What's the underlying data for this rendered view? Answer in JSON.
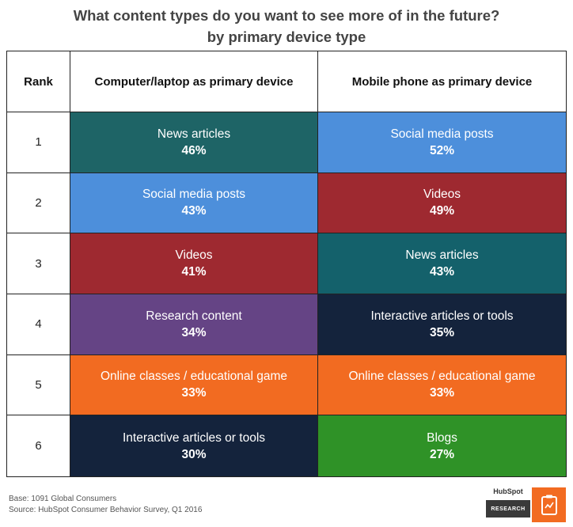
{
  "title_line1": "What content types do you want to see more of in the future?",
  "title_line2": "by primary device type",
  "headers": {
    "rank": "Rank",
    "computer": "Computer/laptop as primary device",
    "mobile": "Mobile phone as primary device"
  },
  "colors": {
    "teal_dark": "#1e6466",
    "teal": "#14616b",
    "blue": "#4d8fdb",
    "red": "#9e2930",
    "purple": "#654485",
    "orange": "#f26b21",
    "navy": "#14233c",
    "green": "#2f9227"
  },
  "rows": [
    {
      "rank": "1",
      "computer": {
        "label": "News articles",
        "pct": "46%",
        "color": "#1e6466"
      },
      "mobile": {
        "label": "Social media posts",
        "pct": "52%",
        "color": "#4d8fdb"
      }
    },
    {
      "rank": "2",
      "computer": {
        "label": "Social media posts",
        "pct": "43%",
        "color": "#4d8fdb"
      },
      "mobile": {
        "label": "Videos",
        "pct": "49%",
        "color": "#9e2930"
      }
    },
    {
      "rank": "3",
      "computer": {
        "label": "Videos",
        "pct": "41%",
        "color": "#9e2930"
      },
      "mobile": {
        "label": "News articles",
        "pct": "43%",
        "color": "#14616b"
      }
    },
    {
      "rank": "4",
      "computer": {
        "label": "Research content",
        "pct": "34%",
        "color": "#654485"
      },
      "mobile": {
        "label": "Interactive articles or tools",
        "pct": "35%",
        "color": "#14233c"
      }
    },
    {
      "rank": "5",
      "computer": {
        "label": "Online classes / educational game",
        "pct": "33%",
        "color": "#f26b21"
      },
      "mobile": {
        "label": "Online classes / educational game",
        "pct": "33%",
        "color": "#f26b21"
      }
    },
    {
      "rank": "6",
      "computer": {
        "label": "Interactive articles or tools",
        "pct": "30%",
        "color": "#14233c"
      },
      "mobile": {
        "label": "Blogs",
        "pct": "27%",
        "color": "#2f9227"
      }
    }
  ],
  "footer": {
    "base": "Base: 1091 Global Consumers",
    "source": "Source: HubSpot Consumer Behavior Survey, Q1 2016"
  },
  "logo": {
    "brand": "HubSpot",
    "research": "RESEARCH",
    "icon": "clipboard-chart-icon"
  },
  "chart_data": {
    "type": "table",
    "title": "What content types do you want to see more of in the future? by primary device type",
    "columns": [
      "Rank",
      "Computer/laptop as primary device",
      "Mobile phone as primary device"
    ],
    "rows": [
      [
        "1",
        "News articles 46%",
        "Social media posts 52%"
      ],
      [
        "2",
        "Social media posts 43%",
        "Videos 49%"
      ],
      [
        "3",
        "Videos 41%",
        "News articles 43%"
      ],
      [
        "4",
        "Research content 34%",
        "Interactive articles or tools 35%"
      ],
      [
        "5",
        "Online classes / educational game 33%",
        "Online classes / educational game 33%"
      ],
      [
        "6",
        "Interactive articles or tools 30%",
        "Blogs 27%"
      ]
    ],
    "series": [
      {
        "name": "Computer/laptop as primary device",
        "categories": [
          "News articles",
          "Social media posts",
          "Videos",
          "Research content",
          "Online classes / educational game",
          "Interactive articles or tools"
        ],
        "values": [
          46,
          43,
          41,
          34,
          33,
          30
        ]
      },
      {
        "name": "Mobile phone as primary device",
        "categories": [
          "Social media posts",
          "Videos",
          "News articles",
          "Interactive articles or tools",
          "Online classes / educational game",
          "Blogs"
        ],
        "values": [
          52,
          49,
          43,
          35,
          33,
          27
        ]
      }
    ]
  }
}
